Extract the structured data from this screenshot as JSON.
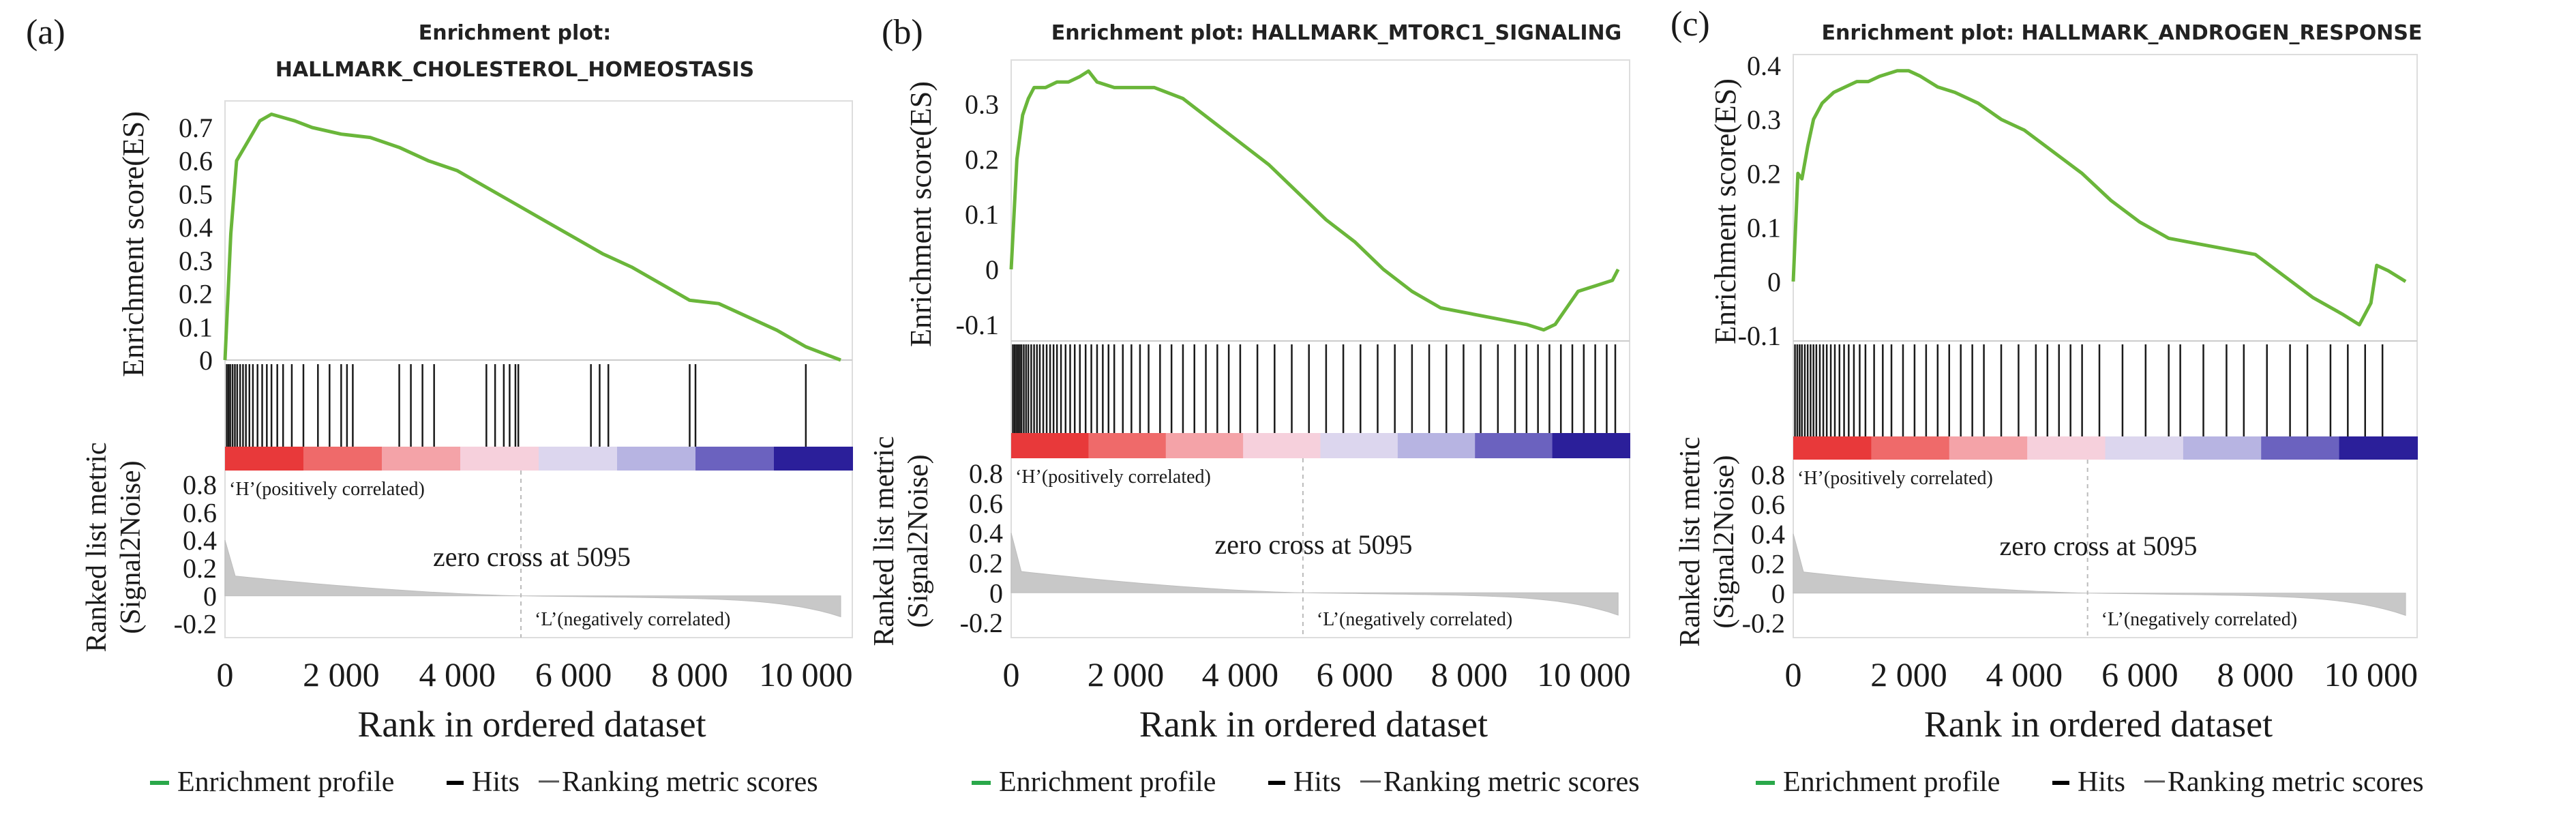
{
  "chart_data": [
    {
      "type": "line",
      "panel_label": "(a)",
      "title_line1": "Enrichment plot:",
      "title_line2": "HALLMARK_CHOLESTEROL_HOMEOSTASIS",
      "es_ylabel": "Enrichment score(ES)",
      "es_ylim": [
        0,
        0.78
      ],
      "es_ticks": [
        0,
        0.1,
        0.2,
        0.3,
        0.4,
        0.5,
        0.6,
        0.7
      ],
      "es_tick_labels": [
        "0",
        "0.1",
        "0.2",
        "0.3",
        "0.4",
        "0.5",
        "0.6",
        "0.7"
      ],
      "es_profile": {
        "x": [
          0,
          100,
          200,
          400,
          600,
          800,
          1000,
          1200,
          1500,
          2000,
          2500,
          3000,
          3500,
          4000,
          4500,
          5000,
          5500,
          6000,
          6500,
          7000,
          7500,
          8000,
          8500,
          9000,
          9500,
          10000,
          10300,
          10600
        ],
        "y": [
          0,
          0.38,
          0.6,
          0.66,
          0.72,
          0.74,
          0.73,
          0.72,
          0.7,
          0.68,
          0.67,
          0.64,
          0.6,
          0.57,
          0.52,
          0.47,
          0.42,
          0.37,
          0.32,
          0.28,
          0.23,
          0.18,
          0.17,
          0.13,
          0.09,
          0.04,
          0.02,
          0
        ]
      },
      "hits": [
        30,
        60,
        90,
        130,
        170,
        210,
        260,
        310,
        360,
        420,
        480,
        560,
        640,
        720,
        800,
        900,
        1000,
        1150,
        1350,
        1600,
        1800,
        2000,
        2100,
        2200,
        3000,
        3200,
        3400,
        3600,
        4500,
        4650,
        4800,
        4900,
        5000,
        5050,
        6300,
        6450,
        6600,
        8000,
        8100,
        10000
      ],
      "metric_ylabel_line1": "Ranked list metric",
      "metric_ylabel_line2": "(Signal2Noise)",
      "metric_ylim": [
        -0.3,
        0.9
      ],
      "metric_ticks": [
        -0.2,
        0,
        0.2,
        0.4,
        0.6,
        0.8
      ],
      "metric_tick_labels": [
        "-0.2",
        "0",
        "0.2",
        "0.4",
        "0.6",
        "0.8"
      ],
      "positive_label": "‘H’(positively correlated)",
      "negative_label": "‘L’(negatively correlated)",
      "zero_cross_label": "zero cross at 5095",
      "zero_cross_rank": 5095,
      "xlabel": "Rank in ordered dataset",
      "xlim": [
        0,
        10800
      ],
      "x_ticks": [
        0,
        2000,
        4000,
        6000,
        8000,
        10000
      ],
      "x_tick_labels": [
        "0",
        "2 000",
        "4 000",
        "6 000",
        "8 000",
        "10 000"
      ],
      "legend": [
        "Enrichment profile",
        "Hits",
        "Ranking metric scores"
      ]
    },
    {
      "type": "line",
      "panel_label": "(b)",
      "title_line1": "Enrichment plot: HALLMARK_MTORC1_SIGNALING",
      "title_line2": "",
      "es_ylabel": "Enrichment score(ES)",
      "es_ylim": [
        -0.13,
        0.38
      ],
      "es_ticks": [
        -0.1,
        0,
        0.1,
        0.2,
        0.3
      ],
      "es_tick_labels": [
        "-0.1",
        "0",
        "0.1",
        "0.2",
        "0.3"
      ],
      "es_profile": {
        "x": [
          0,
          100,
          200,
          300,
          400,
          600,
          800,
          1000,
          1200,
          1350,
          1500,
          1800,
          2000,
          2500,
          3000,
          3500,
          4000,
          4500,
          5000,
          5500,
          6000,
          6500,
          7000,
          7500,
          8000,
          8500,
          9000,
          9300,
          9500,
          9700,
          9900,
          10200,
          10500,
          10600
        ],
        "y": [
          0,
          0.2,
          0.28,
          0.31,
          0.33,
          0.33,
          0.34,
          0.34,
          0.35,
          0.36,
          0.34,
          0.33,
          0.33,
          0.33,
          0.31,
          0.27,
          0.23,
          0.19,
          0.14,
          0.09,
          0.05,
          0.0,
          -0.04,
          -0.07,
          -0.08,
          -0.09,
          -0.1,
          -0.11,
          -0.1,
          -0.07,
          -0.04,
          -0.03,
          -0.02,
          0.0
        ]
      },
      "hits": [
        30,
        60,
        90,
        120,
        150,
        180,
        220,
        260,
        300,
        350,
        400,
        450,
        500,
        560,
        620,
        680,
        740,
        800,
        870,
        950,
        1030,
        1110,
        1200,
        1300,
        1400,
        1500,
        1600,
        1700,
        1800,
        1950,
        2100,
        2250,
        2400,
        2600,
        2800,
        3000,
        3200,
        3400,
        3600,
        3800,
        4000,
        4300,
        4600,
        4900,
        5200,
        5500,
        5800,
        6100,
        6400,
        6700,
        7000,
        7300,
        7600,
        7900,
        8200,
        8500,
        8800,
        9000,
        9200,
        9400,
        9600,
        9800,
        10000,
        10200,
        10400,
        10550
      ],
      "metric_ylabel_line1": "Ranked list metric",
      "metric_ylabel_line2": "(Signal2Noise)",
      "metric_ylim": [
        -0.3,
        0.9
      ],
      "metric_ticks": [
        -0.2,
        0,
        0.2,
        0.4,
        0.6,
        0.8
      ],
      "metric_tick_labels": [
        "-0.2",
        "0",
        "0.2",
        "0.4",
        "0.6",
        "0.8"
      ],
      "positive_label": "‘H’(positively correlated)",
      "negative_label": "‘L’(negatively correlated)",
      "zero_cross_label": "zero cross at 5095",
      "zero_cross_rank": 5095,
      "xlabel": "Rank in ordered dataset",
      "xlim": [
        0,
        10800
      ],
      "x_ticks": [
        0,
        2000,
        4000,
        6000,
        8000,
        10000
      ],
      "x_tick_labels": [
        "0",
        "2 000",
        "4 000",
        "6 000",
        "8 000",
        "10 000"
      ],
      "legend": [
        "Enrichment profile",
        "Hits",
        "Ranking metric scores"
      ]
    },
    {
      "type": "line",
      "panel_label": "(c)",
      "title_line1": "Enrichment plot: HALLMARK_ANDROGEN_RESPONSE",
      "title_line2": "",
      "es_ylabel": "Enrichment score(ES)",
      "es_ylim": [
        -0.11,
        0.42
      ],
      "es_ticks": [
        -0.1,
        0,
        0.1,
        0.2,
        0.3,
        0.4
      ],
      "es_tick_labels": [
        "-0.1",
        "0",
        "0.1",
        "0.2",
        "0.3",
        "0.4"
      ],
      "es_profile": {
        "x": [
          0,
          80,
          150,
          250,
          350,
          500,
          700,
          900,
          1100,
          1300,
          1500,
          1800,
          2000,
          2200,
          2500,
          2800,
          3200,
          3600,
          4000,
          4500,
          5000,
          5500,
          6000,
          6500,
          7000,
          7500,
          8000,
          8500,
          9000,
          9500,
          9800,
          10000,
          10100,
          10300,
          10600
        ],
        "y": [
          0,
          0.2,
          0.19,
          0.25,
          0.3,
          0.33,
          0.35,
          0.36,
          0.37,
          0.37,
          0.38,
          0.39,
          0.39,
          0.38,
          0.36,
          0.35,
          0.33,
          0.3,
          0.28,
          0.24,
          0.2,
          0.15,
          0.11,
          0.08,
          0.07,
          0.06,
          0.05,
          0.01,
          -0.03,
          -0.06,
          -0.08,
          -0.04,
          0.03,
          0.02,
          0.0
        ]
      },
      "hits": [
        30,
        70,
        110,
        150,
        200,
        250,
        300,
        350,
        400,
        460,
        520,
        580,
        650,
        720,
        800,
        880,
        960,
        1050,
        1150,
        1250,
        1400,
        1550,
        1700,
        1900,
        2100,
        2300,
        2500,
        2700,
        2900,
        3100,
        3300,
        3600,
        3900,
        4200,
        4400,
        4600,
        4800,
        5000,
        5300,
        5700,
        6100,
        6500,
        6700,
        7100,
        7500,
        7800,
        8200,
        8600,
        8900,
        9300,
        9600,
        9900,
        10200
      ],
      "metric_ylabel_line1": "Ranked list metric",
      "metric_ylabel_line2": "(Signal2Noise)",
      "metric_ylim": [
        -0.3,
        0.9
      ],
      "metric_ticks": [
        -0.2,
        0,
        0.2,
        0.4,
        0.6,
        0.8
      ],
      "metric_tick_labels": [
        "-0.2",
        "0",
        "0.2",
        "0.4",
        "0.6",
        "0.8"
      ],
      "positive_label": "‘H’(positively correlated)",
      "negative_label": "‘L’(negatively correlated)",
      "zero_cross_label": "zero cross at 5095",
      "zero_cross_rank": 5095,
      "xlabel": "Rank in ordered dataset",
      "xlim": [
        0,
        10800
      ],
      "x_ticks": [
        0,
        2000,
        4000,
        6000,
        8000,
        10000
      ],
      "x_tick_labels": [
        "0",
        "2 000",
        "4 000",
        "6 000",
        "8 000",
        "10 000"
      ],
      "legend": [
        "Enrichment profile",
        "Hits",
        "Ranking metric scores"
      ]
    }
  ],
  "colors": {
    "profile": "#6ab63a",
    "hits": "#1a1a1a",
    "metric_fill": "#c8c8c8",
    "legend_profile": "#2aa84a",
    "legend_hits": "#000000",
    "legend_metric": "#555555",
    "heat": [
      "#e8393a",
      "#ef6a6a",
      "#f4a3a8",
      "#f6d0dc",
      "#dcd6ee",
      "#b7b4e2",
      "#6b62bf",
      "#2b1f9a"
    ]
  }
}
